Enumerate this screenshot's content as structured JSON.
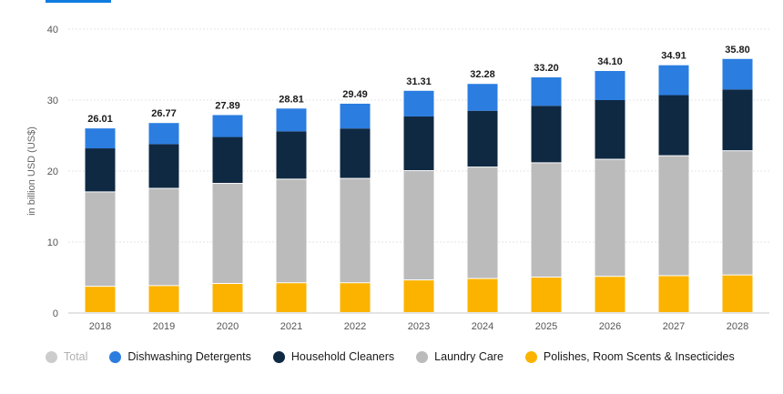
{
  "chart_data": {
    "type": "bar",
    "stacked": true,
    "ylabel": "in billion USD (US$)",
    "ylim": [
      0,
      40
    ],
    "yticks": [
      0,
      10,
      20,
      30,
      40
    ],
    "grid": true,
    "legend_position": "bottom",
    "categories": [
      "2018",
      "2019",
      "2020",
      "2021",
      "2022",
      "2023",
      "2024",
      "2025",
      "2026",
      "2027",
      "2028"
    ],
    "totals": [
      "26.01",
      "26.77",
      "27.89",
      "28.81",
      "29.49",
      "31.31",
      "32.28",
      "33.20",
      "34.10",
      "34.91",
      "35.80"
    ],
    "series": [
      {
        "name": "Polishes, Room Scents & Insecticides",
        "color": "#fbb300",
        "values": [
          3.7,
          3.8,
          4.1,
          4.2,
          4.2,
          4.6,
          4.8,
          5.0,
          5.1,
          5.2,
          5.3
        ]
      },
      {
        "name": "Laundry Care",
        "color": "#bbbbbb",
        "values": [
          13.3,
          13.7,
          14.1,
          14.6,
          14.7,
          15.4,
          15.7,
          16.1,
          16.5,
          16.9,
          17.5
        ]
      },
      {
        "name": "Household Cleaners",
        "color": "#0f2943",
        "values": [
          6.2,
          6.3,
          6.6,
          6.8,
          7.1,
          7.7,
          8.0,
          8.1,
          8.4,
          8.6,
          8.7
        ]
      },
      {
        "name": "Dishwashing Detergents",
        "color": "#2b7de0",
        "values": [
          2.81,
          2.97,
          3.09,
          3.21,
          3.49,
          3.61,
          3.78,
          4.0,
          4.1,
          4.21,
          4.3
        ]
      }
    ]
  },
  "legend": {
    "items": [
      {
        "label": "Total",
        "color": "#cccccc",
        "inactive": true
      },
      {
        "label": "Dishwashing Detergents",
        "color": "#2b7de0"
      },
      {
        "label": "Household Cleaners",
        "color": "#0f2943"
      },
      {
        "label": "Laundry Care",
        "color": "#bbbbbb"
      },
      {
        "label": "Polishes, Room Scents & Insecticides",
        "color": "#fbb300"
      }
    ]
  }
}
